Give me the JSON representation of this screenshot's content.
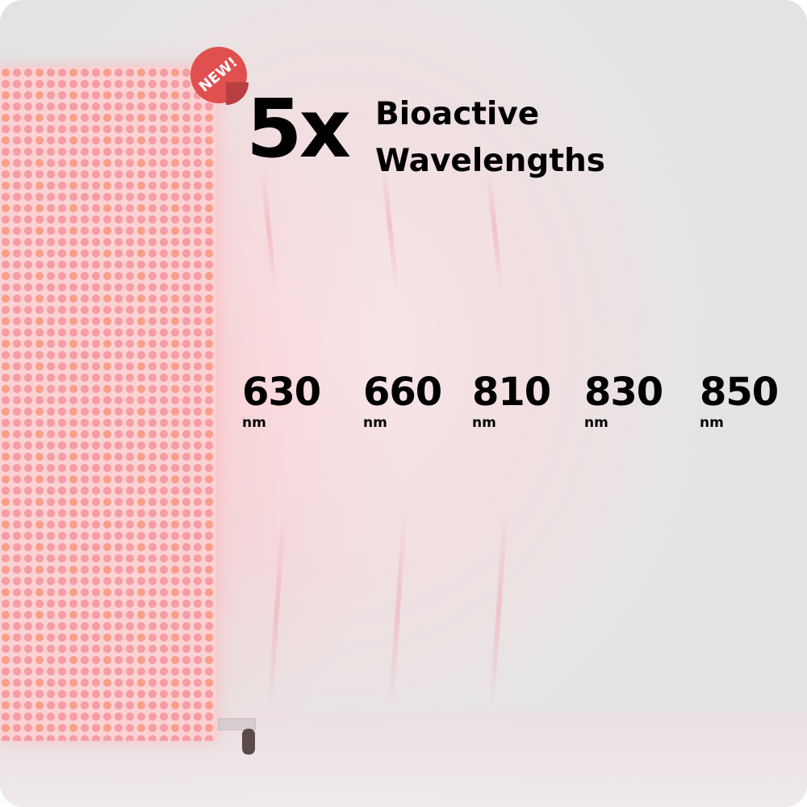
{
  "badge": {
    "label": "NEW!",
    "color": "#e0504f"
  },
  "headline": {
    "multiplier": "5x",
    "line1": "Bioactive",
    "line2": "Wavelengths"
  },
  "wavelengths": [
    {
      "value": "630",
      "unit": "nm"
    },
    {
      "value": "660",
      "unit": "nm"
    },
    {
      "value": "810",
      "unit": "nm"
    },
    {
      "value": "830",
      "unit": "nm"
    },
    {
      "value": "850",
      "unit": "nm"
    }
  ]
}
